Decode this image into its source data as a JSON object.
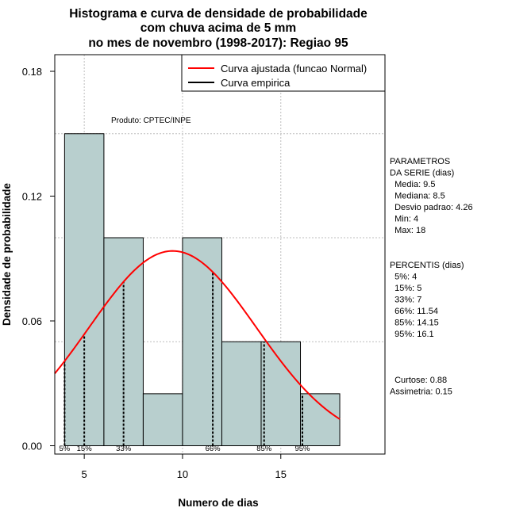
{
  "chart_data": {
    "type": "histogram",
    "title_lines": [
      "Histograma e curva de densidade de probabilidade",
      "com chuva acima de 5 mm",
      "no mes de novembro (1998-2017): Regiao 95"
    ],
    "xlabel": "Numero de dias",
    "ylabel": "Densidade de probabilidade",
    "xlim": [
      3.5,
      20.3
    ],
    "ylim": [
      -0.004,
      0.188
    ],
    "x_ticks": [
      5,
      10,
      15
    ],
    "x_tick_labels": [
      "5",
      "10",
      "15"
    ],
    "y_ticks": [
      0.0,
      0.06,
      0.12,
      0.18
    ],
    "y_tick_labels": [
      "0.00",
      "0.06",
      "0.12",
      "0.18"
    ],
    "grid": true,
    "grid_x": [
      5,
      10,
      15
    ],
    "grid_y": [
      0.05,
      0.1,
      0.15
    ],
    "bins": [
      {
        "start": 4,
        "end": 6,
        "density": 0.15
      },
      {
        "start": 6,
        "end": 8,
        "density": 0.1
      },
      {
        "start": 8,
        "end": 10,
        "density": 0.025
      },
      {
        "start": 10,
        "end": 12,
        "density": 0.1
      },
      {
        "start": 12,
        "end": 14,
        "density": 0.05
      },
      {
        "start": 14,
        "end": 16,
        "density": 0.05
      },
      {
        "start": 16,
        "end": 18,
        "density": 0.025
      }
    ],
    "normal_fit": {
      "mean": 9.5,
      "sd": 4.26,
      "x_from": 3.5,
      "x_to": 18
    },
    "percentiles": [
      {
        "label": "5%",
        "value": 4
      },
      {
        "label": "15%",
        "value": 5
      },
      {
        "label": "33%",
        "value": 7
      },
      {
        "label": "66%",
        "value": 11.54
      },
      {
        "label": "85%",
        "value": 14.15
      },
      {
        "label": "95%",
        "value": 16.1
      }
    ],
    "legend": {
      "position": "top-right",
      "entries": [
        {
          "label": "Curva ajustada (funcao Normal)",
          "color": "#ff0000"
        },
        {
          "label": "Curva empirica",
          "color": "#000000"
        }
      ]
    },
    "credit": "Produto: CPTEC/INPE",
    "colors": {
      "bar_fill": "#b8cfce",
      "fit_line": "#ff0000",
      "grid": "#bebebe"
    }
  },
  "side_panel": {
    "parametros_lines": [
      "PARAMETROS",
      "DA SERIE (dias)",
      "  Media: 9.5",
      "  Mediana: 8.5",
      "  Desvio padrao: 4.26",
      "  Min: 4",
      "  Max: 18"
    ],
    "percentis_lines": [
      "PERCENTIS (dias)",
      "  5%: 4",
      "  15%: 5",
      "  33%: 7",
      "  66%: 11.54",
      "  85%: 14.15",
      "  95%: 16.1"
    ],
    "shape_lines": [
      "  Curtose: 0.88",
      "Assimetria: 0.15"
    ]
  }
}
